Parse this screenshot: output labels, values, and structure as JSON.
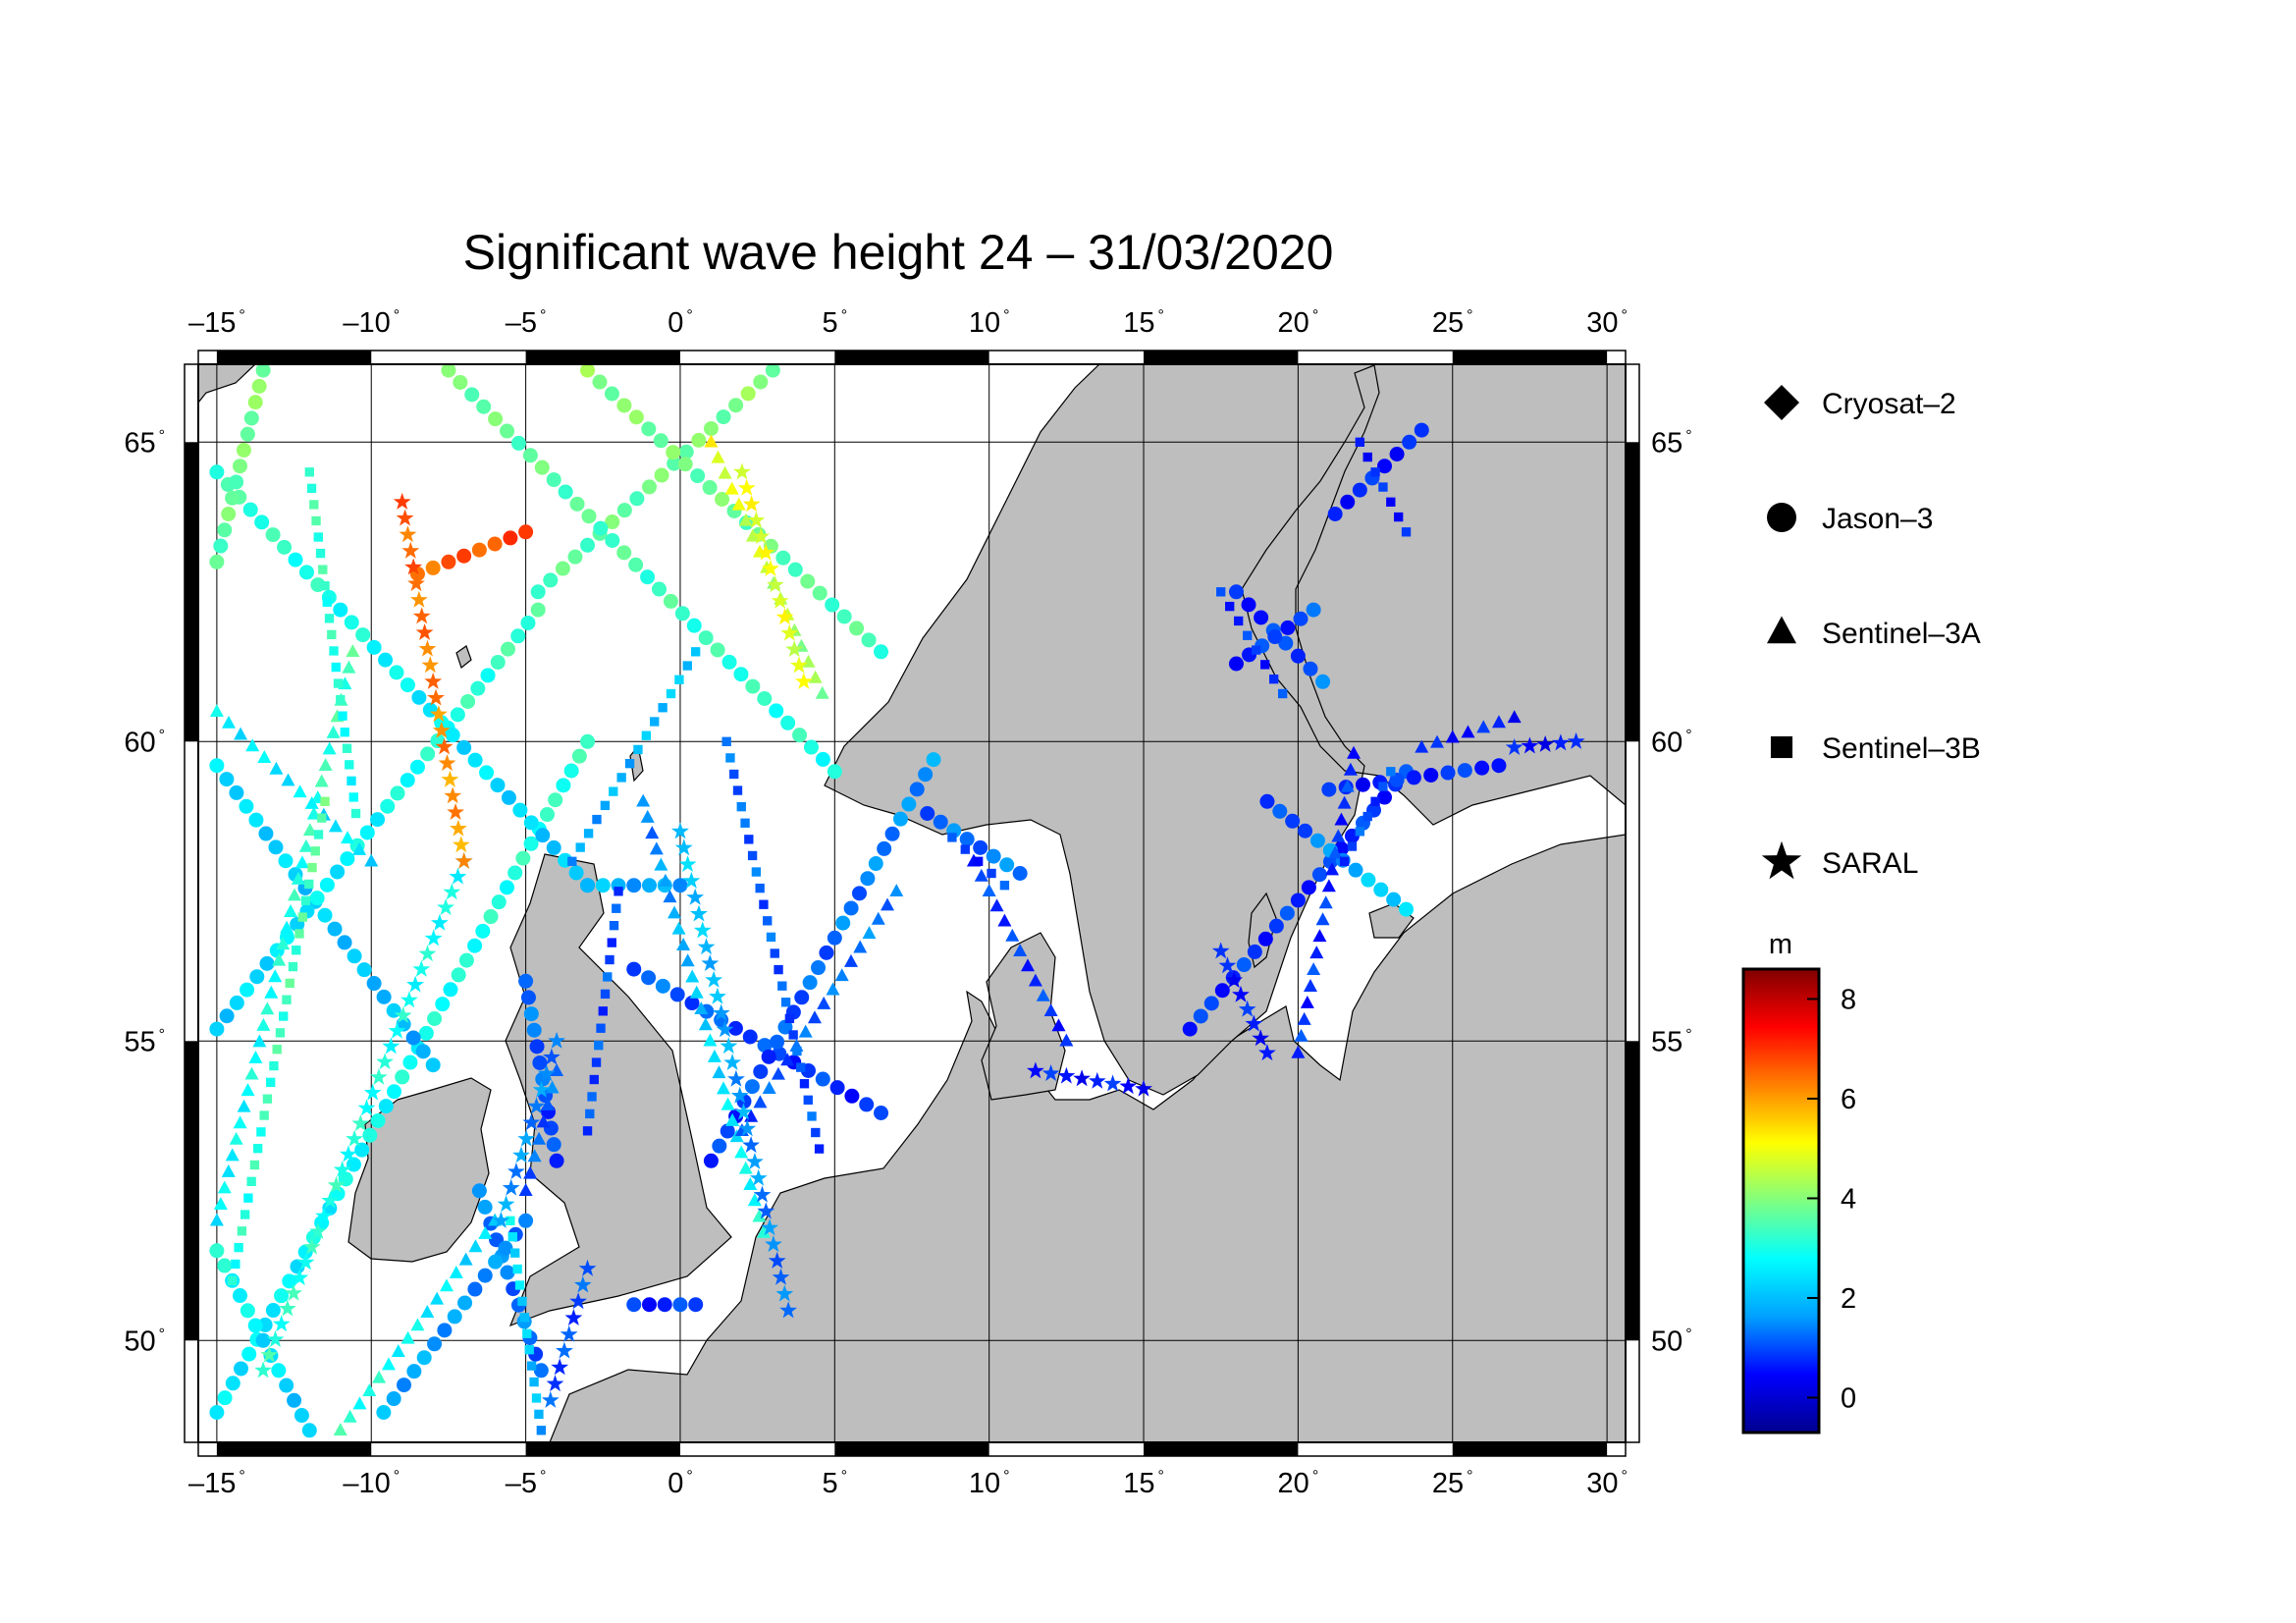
{
  "title": "Significant wave height 24 – 31/03/2020",
  "map": {
    "lon_min": -15.6,
    "lon_max": 30.6,
    "lat_min": 48.3,
    "lat_max": 66.3,
    "lon_ticks": [
      "–15",
      "–10",
      "–5",
      "0",
      "5",
      "10",
      "15",
      "20",
      "25",
      "30"
    ],
    "lon_tick_values": [
      -15,
      -10,
      -5,
      0,
      5,
      10,
      15,
      20,
      25,
      30
    ],
    "lat_ticks": [
      "65",
      "60",
      "55",
      "50"
    ],
    "lat_tick_values": [
      65,
      60,
      55,
      50
    ],
    "degree_symbol": "°",
    "land_color": "#bebebe",
    "sea_color": "#ffffff",
    "grid": true
  },
  "legend": {
    "items": [
      {
        "label": "Cryosat–2",
        "symbol": "diamond"
      },
      {
        "label": "Jason–3",
        "symbol": "circle"
      },
      {
        "label": "Sentinel–3A",
        "symbol": "triangle"
      },
      {
        "label": "Sentinel–3B",
        "symbol": "square"
      },
      {
        "label": "SARAL",
        "symbol": "star"
      }
    ]
  },
  "colorbar": {
    "unit": "m",
    "min": -0.7,
    "max": 8.6,
    "tick_labels": [
      "8",
      "6",
      "4",
      "2",
      "0"
    ],
    "tick_values": [
      8,
      6,
      4,
      2,
      0
    ],
    "stops": [
      "#00008f",
      "#0000ff",
      "#00a0ff",
      "#00ffff",
      "#80ff80",
      "#ffff00",
      "#ff8000",
      "#ff0000",
      "#800000"
    ]
  },
  "chart_data": {
    "type": "scatter",
    "x_axis": "longitude",
    "y_axis": "latitude",
    "value": "significant wave height (m)",
    "tracks": [
      {
        "satellite": "Jason–3",
        "marker": "circle",
        "start": [
          -15.0,
          48.8
        ],
        "end": [
          -3.0,
          60.0
        ],
        "v0": 2.5,
        "v1": 3.2
      },
      {
        "satellite": "Jason–3",
        "marker": "circle",
        "start": [
          -12.0,
          48.5
        ],
        "end": [
          -15.0,
          51.5
        ],
        "v0": 2.0,
        "v1": 3.0
      },
      {
        "satellite": "Jason–3",
        "marker": "circle",
        "start": [
          -15.0,
          59.6
        ],
        "end": [
          -8.0,
          54.6
        ],
        "v0": 2.4,
        "v1": 1.8
      },
      {
        "satellite": "Jason–3",
        "marker": "circle",
        "start": [
          -15.0,
          55.2
        ],
        "end": [
          -4.6,
          62.2
        ],
        "v0": 2.2,
        "v1": 3.4
      },
      {
        "satellite": "Jason–3",
        "marker": "circle",
        "start": [
          -4.6,
          62.5
        ],
        "end": [
          3.0,
          66.2
        ],
        "v0": 3.5,
        "v1": 4.0
      },
      {
        "satellite": "Jason–3",
        "marker": "circle",
        "start": [
          -15.0,
          64.5
        ],
        "end": [
          -3.0,
          57.6
        ],
        "v0": 3.4,
        "v1": 2.0
      },
      {
        "satellite": "Jason–3",
        "marker": "circle",
        "start": [
          -3.0,
          57.6
        ],
        "end": [
          0.0,
          57.6
        ],
        "v0": 2.0,
        "v1": 1.6
      },
      {
        "satellite": "Jason–3",
        "marker": "circle",
        "start": [
          -7.5,
          66.2
        ],
        "end": [
          5.0,
          59.5
        ],
        "v0": 3.8,
        "v1": 3.0
      },
      {
        "satellite": "Jason–3",
        "marker": "circle",
        "start": [
          -3.0,
          66.2
        ],
        "end": [
          6.5,
          61.5
        ],
        "v0": 4.0,
        "v1": 3.4
      },
      {
        "satellite": "Jason–3",
        "marker": "circle",
        "start": [
          -15.0,
          63.0
        ],
        "end": [
          -13.5,
          66.2
        ],
        "v0": 3.6,
        "v1": 4.0
      },
      {
        "satellite": "Jason–3",
        "marker": "circle",
        "start": [
          -5.0,
          56.0
        ],
        "end": [
          -4.0,
          53.0
        ],
        "v0": 1.4,
        "v1": 0.8
      },
      {
        "satellite": "Jason–3",
        "marker": "circle",
        "start": [
          -1.5,
          56.2
        ],
        "end": [
          6.5,
          53.8
        ],
        "v0": 1.2,
        "v1": 0.7
      },
      {
        "satellite": "Jason–3",
        "marker": "circle",
        "start": [
          1.0,
          53.0
        ],
        "end": [
          8.2,
          59.7
        ],
        "v0": 0.8,
        "v1": 1.6
      },
      {
        "satellite": "Jason–3",
        "marker": "circle",
        "start": [
          -6.5,
          52.5
        ],
        "end": [
          -4.5,
          49.5
        ],
        "v0": 1.4,
        "v1": 1.2
      },
      {
        "satellite": "Jason–3",
        "marker": "circle",
        "start": [
          -9.6,
          48.8
        ],
        "end": [
          -5.0,
          52.0
        ],
        "v0": 1.8,
        "v1": 1.4
      },
      {
        "satellite": "Jason–3",
        "marker": "circle",
        "start": [
          -1.5,
          50.6
        ],
        "end": [
          0.5,
          50.6
        ],
        "v0": 0.8,
        "v1": 0.8
      },
      {
        "satellite": "Jason–3",
        "marker": "circle",
        "start": [
          -8.5,
          62.8
        ],
        "end": [
          -5.0,
          63.5
        ],
        "v0": 6.5,
        "v1": 6.8
      },
      {
        "satellite": "Jason–3",
        "marker": "circle",
        "start": [
          8.0,
          58.8
        ],
        "end": [
          11.0,
          57.8
        ],
        "v0": 1.2,
        "v1": 1.4
      },
      {
        "satellite": "Jason–3",
        "marker": "circle",
        "start": [
          16.5,
          55.2
        ],
        "end": [
          23.5,
          59.5
        ],
        "v0": 0.8,
        "v1": 0.8
      },
      {
        "satellite": "Jason–3",
        "marker": "circle",
        "start": [
          19.0,
          59.0
        ],
        "end": [
          23.5,
          57.2
        ],
        "v0": 0.7,
        "v1": 2.5
      },
      {
        "satellite": "Jason–3",
        "marker": "circle",
        "start": [
          21.0,
          59.2
        ],
        "end": [
          26.5,
          59.6
        ],
        "v0": 0.6,
        "v1": 0.8
      },
      {
        "satellite": "Jason–3",
        "marker": "circle",
        "start": [
          18.0,
          62.5
        ],
        "end": [
          20.8,
          61.0
        ],
        "v0": 0.6,
        "v1": 1.2
      },
      {
        "satellite": "Jason–3",
        "marker": "circle",
        "start": [
          21.2,
          63.8
        ],
        "end": [
          24.0,
          65.2
        ],
        "v0": 0.7,
        "v1": 0.6
      },
      {
        "satellite": "Jason–3",
        "marker": "circle",
        "start": [
          18.0,
          61.3
        ],
        "end": [
          20.5,
          62.2
        ],
        "v0": 0.7,
        "v1": 1.0
      },
      {
        "satellite": "Sentinel–3A",
        "marker": "triangle",
        "start": [
          -15.0,
          52.0
        ],
        "end": [
          -10.6,
          61.5
        ],
        "v0": 2.6,
        "v1": 3.4
      },
      {
        "satellite": "Sentinel–3A",
        "marker": "triangle",
        "start": [
          -6.0,
          52.0
        ],
        "end": [
          -11.0,
          48.5
        ],
        "v0": 2.2,
        "v1": 3.2
      },
      {
        "satellite": "Sentinel–3A",
        "marker": "triangle",
        "start": [
          -1.2,
          59.0
        ],
        "end": [
          2.7,
          51.8
        ],
        "v0": 1.3,
        "v1": 3.0
      },
      {
        "satellite": "Sentinel–3A",
        "marker": "triangle",
        "start": [
          1.0,
          65.0
        ],
        "end": [
          4.6,
          60.8
        ],
        "v0": 5.0,
        "v1": 4.0
      },
      {
        "satellite": "Sentinel–3A",
        "marker": "triangle",
        "start": [
          2.0,
          53.5
        ],
        "end": [
          7.0,
          57.5
        ],
        "v0": 1.0,
        "v1": 1.4
      },
      {
        "satellite": "Sentinel–3A",
        "marker": "triangle",
        "start": [
          -5.0,
          52.5
        ],
        "end": [
          -4.0,
          54.5
        ],
        "v0": 1.1,
        "v1": 1.2
      },
      {
        "satellite": "Sentinel–3A",
        "marker": "triangle",
        "start": [
          9.5,
          58.0
        ],
        "end": [
          12.5,
          55.0
        ],
        "v0": 0.9,
        "v1": 0.8
      },
      {
        "satellite": "Sentinel–3A",
        "marker": "triangle",
        "start": [
          20.0,
          54.8
        ],
        "end": [
          21.8,
          59.8
        ],
        "v0": 0.8,
        "v1": 0.8
      },
      {
        "satellite": "Sentinel–3A",
        "marker": "triangle",
        "start": [
          24.0,
          59.9
        ],
        "end": [
          27.0,
          60.4
        ],
        "v0": 0.6,
        "v1": 0.6
      },
      {
        "satellite": "Sentinel–3A",
        "marker": "triangle",
        "start": [
          -15.0,
          60.5
        ],
        "end": [
          -10.0,
          58.0
        ],
        "v0": 2.6,
        "v1": 2.4
      },
      {
        "satellite": "Sentinel–3B",
        "marker": "square",
        "start": [
          -14.5,
          51.0
        ],
        "end": [
          -11.5,
          59.0
        ],
        "v0": 3.0,
        "v1": 3.6
      },
      {
        "satellite": "Sentinel–3B",
        "marker": "square",
        "start": [
          -12.0,
          64.5
        ],
        "end": [
          -10.5,
          58.8
        ],
        "v0": 3.4,
        "v1": 2.8
      },
      {
        "satellite": "Sentinel–3B",
        "marker": "square",
        "start": [
          -4.5,
          48.5
        ],
        "end": [
          -5.5,
          52.0
        ],
        "v0": 1.8,
        "v1": 2.6
      },
      {
        "satellite": "Sentinel–3B",
        "marker": "square",
        "start": [
          -3.5,
          58.0
        ],
        "end": [
          0.5,
          61.5
        ],
        "v0": 1.6,
        "v1": 2.2
      },
      {
        "satellite": "Sentinel–3B",
        "marker": "square",
        "start": [
          1.5,
          60.0
        ],
        "end": [
          4.5,
          53.2
        ],
        "v0": 1.2,
        "v1": 1.0
      },
      {
        "satellite": "Sentinel–3B",
        "marker": "square",
        "start": [
          8.8,
          58.4
        ],
        "end": [
          10.5,
          57.6
        ],
        "v0": 0.8,
        "v1": 0.9
      },
      {
        "satellite": "Sentinel–3B",
        "marker": "square",
        "start": [
          17.5,
          62.5
        ],
        "end": [
          19.5,
          60.8
        ],
        "v0": 0.8,
        "v1": 0.8
      },
      {
        "satellite": "Sentinel–3B",
        "marker": "square",
        "start": [
          22.0,
          65.0
        ],
        "end": [
          23.5,
          63.5
        ],
        "v0": 0.7,
        "v1": 0.6
      },
      {
        "satellite": "Sentinel–3B",
        "marker": "square",
        "start": [
          21.5,
          58.0
        ],
        "end": [
          23.0,
          59.5
        ],
        "v0": 1.0,
        "v1": 1.0
      },
      {
        "satellite": "Sentinel–3B",
        "marker": "square",
        "start": [
          -3.0,
          53.5
        ],
        "end": [
          -2.0,
          57.5
        ],
        "v0": 1.0,
        "v1": 1.0
      },
      {
        "satellite": "SARAL",
        "marker": "star",
        "start": [
          -13.5,
          49.5
        ],
        "end": [
          -7.0,
          58.0
        ],
        "v0": 3.2,
        "v1": 2.8
      },
      {
        "satellite": "SARAL",
        "marker": "star",
        "start": [
          -9.0,
          64.0
        ],
        "end": [
          -7.0,
          58.0
        ],
        "v0": 6.6,
        "v1": 6.0
      },
      {
        "satellite": "SARAL",
        "marker": "star",
        "start": [
          -4.2,
          49.0
        ],
        "end": [
          -3.0,
          51.2
        ],
        "v0": 1.0,
        "v1": 1.0
      },
      {
        "satellite": "SARAL",
        "marker": "star",
        "start": [
          -4.0,
          55.0
        ],
        "end": [
          -5.8,
          52.0
        ],
        "v0": 1.4,
        "v1": 1.6
      },
      {
        "satellite": "SARAL",
        "marker": "star",
        "start": [
          0.0,
          58.5
        ],
        "end": [
          3.5,
          50.5
        ],
        "v0": 2.2,
        "v1": 1.2
      },
      {
        "satellite": "SARAL",
        "marker": "star",
        "start": [
          2.0,
          64.5
        ],
        "end": [
          4.0,
          61.0
        ],
        "v0": 5.0,
        "v1": 4.8
      },
      {
        "satellite": "SARAL",
        "marker": "star",
        "start": [
          11.5,
          54.5
        ],
        "end": [
          15.0,
          54.2
        ],
        "v0": 0.6,
        "v1": 0.6
      },
      {
        "satellite": "SARAL",
        "marker": "star",
        "start": [
          17.5,
          56.5
        ],
        "end": [
          19.0,
          54.8
        ],
        "v0": 0.6,
        "v1": 0.6
      },
      {
        "satellite": "SARAL",
        "marker": "star",
        "start": [
          27.0,
          59.9
        ],
        "end": [
          29.0,
          60.0
        ],
        "v0": 0.5,
        "v1": 0.5
      }
    ]
  }
}
